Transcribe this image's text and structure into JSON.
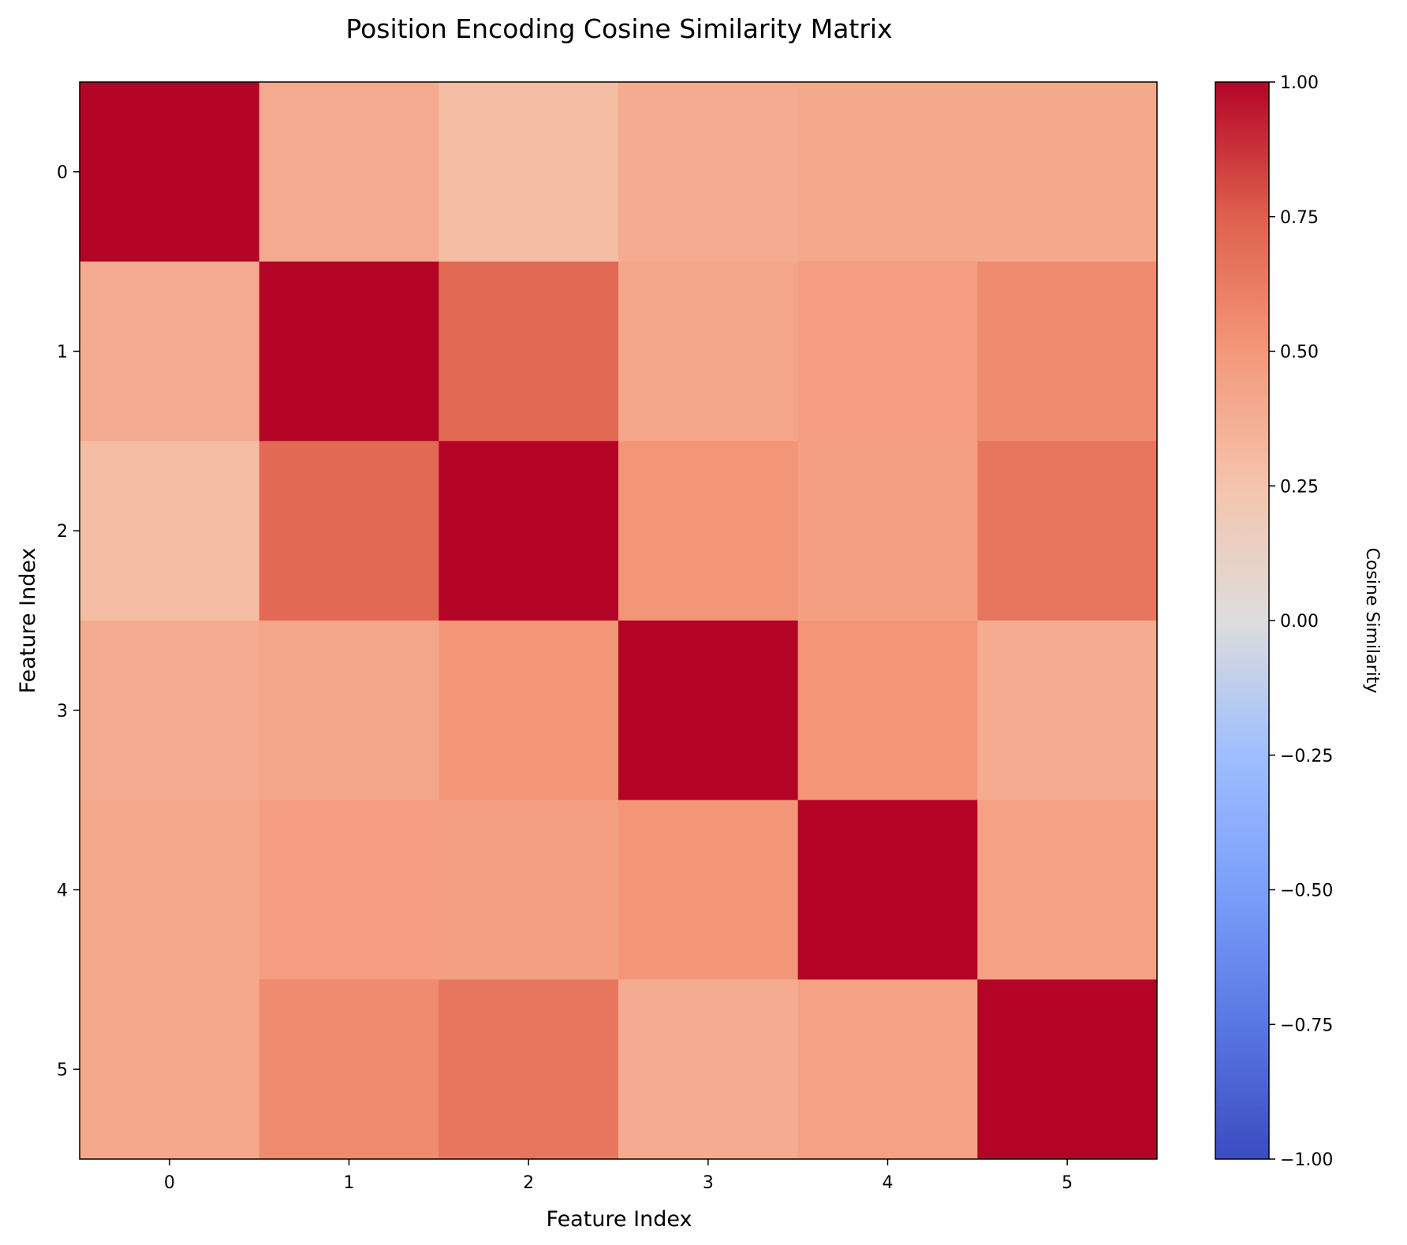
{
  "chart_data": {
    "type": "heatmap",
    "title": "Position Encoding Cosine Similarity Matrix",
    "xlabel": "Feature Index",
    "ylabel": "Feature Index",
    "x_categories": [
      "0",
      "1",
      "2",
      "3",
      "4",
      "5"
    ],
    "y_categories": [
      "0",
      "1",
      "2",
      "3",
      "4",
      "5"
    ],
    "values": [
      [
        1.0,
        0.4,
        0.29,
        0.39,
        0.41,
        0.41
      ],
      [
        0.4,
        1.0,
        0.71,
        0.42,
        0.47,
        0.56
      ],
      [
        0.29,
        0.71,
        1.0,
        0.51,
        0.46,
        0.65
      ],
      [
        0.39,
        0.42,
        0.51,
        1.0,
        0.51,
        0.39
      ],
      [
        0.41,
        0.47,
        0.46,
        0.51,
        1.0,
        0.45
      ],
      [
        0.41,
        0.56,
        0.65,
        0.39,
        0.45,
        1.0
      ]
    ],
    "colormap": "coolwarm",
    "vmin": -1.0,
    "vmax": 1.0,
    "colorbar": {
      "label": "Cosine Similarity",
      "ticks": [
        1.0,
        0.75,
        0.5,
        0.25,
        0.0,
        -0.25,
        -0.5,
        -0.75,
        -1.0
      ],
      "tick_labels": [
        "1.00",
        "0.75",
        "0.50",
        "0.25",
        "0.00",
        "−0.25",
        "−0.50",
        "−0.75",
        "−1.00"
      ]
    },
    "grid": false
  }
}
